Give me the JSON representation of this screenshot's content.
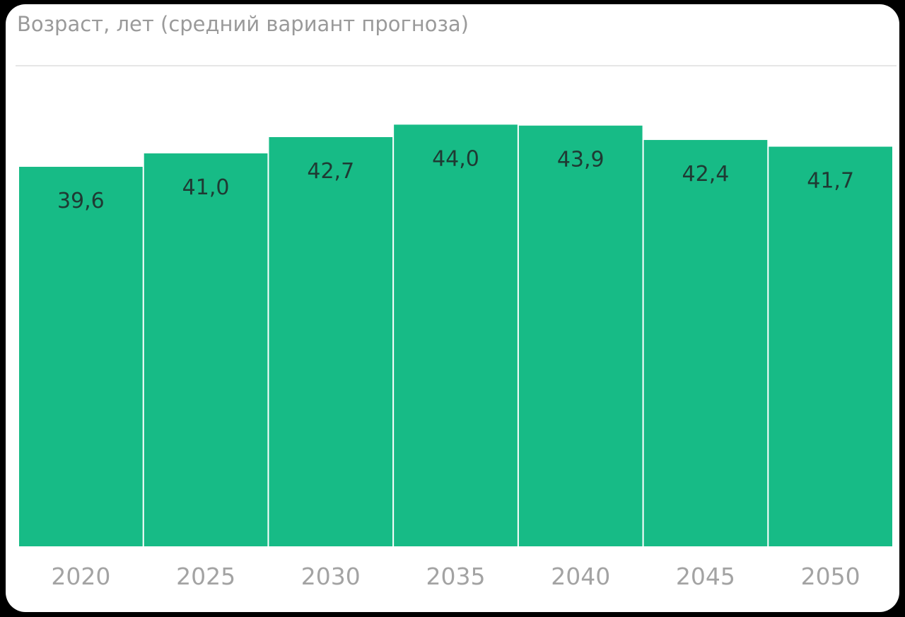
{
  "chart_data": {
    "type": "bar",
    "title": "Возраст, лет (средний вариант прогноза)",
    "categories": [
      "2020",
      "2025",
      "2030",
      "2035",
      "2040",
      "2045",
      "2050"
    ],
    "values": [
      39.6,
      41.0,
      42.7,
      44.0,
      43.9,
      42.4,
      41.7
    ],
    "value_labels": [
      "39,6",
      "41,0",
      "42,7",
      "44,0",
      "43,9",
      "42,4",
      "41,7"
    ],
    "color": "#17bb86",
    "ylim": [
      0,
      50
    ]
  }
}
